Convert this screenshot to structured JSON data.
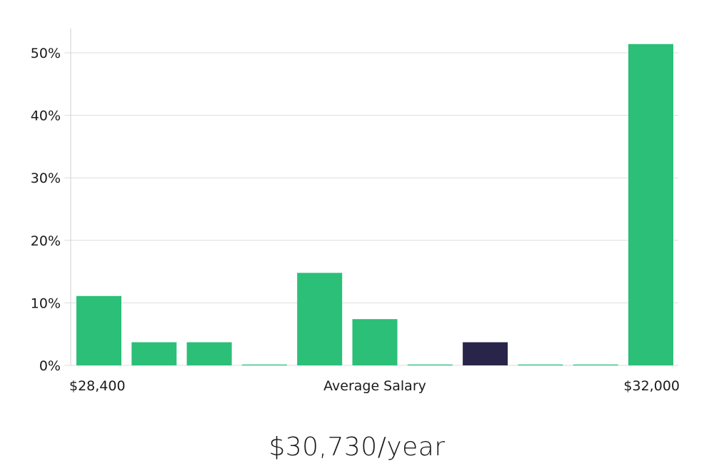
{
  "chart_data": {
    "type": "bar",
    "title": "",
    "xlabel": "Average Salary",
    "ylabel": "",
    "x_min_label": "$28,400",
    "x_max_label": "$32,000",
    "ylim": [
      0,
      53
    ],
    "yticks": [
      0,
      10,
      20,
      30,
      40,
      50
    ],
    "ytick_labels": [
      "0%",
      "10%",
      "20%",
      "30%",
      "40%",
      "50%"
    ],
    "values": [
      11.1,
      3.7,
      3.7,
      0,
      14.8,
      7.4,
      0,
      3.7,
      0,
      0,
      51.4
    ],
    "highlight_index": 7,
    "colors": {
      "bar": "#2bbf77",
      "highlight": "#28244a",
      "grid": "#dddddd",
      "axis": "#d0d0d0"
    }
  },
  "salary_display": "$30,730/year"
}
